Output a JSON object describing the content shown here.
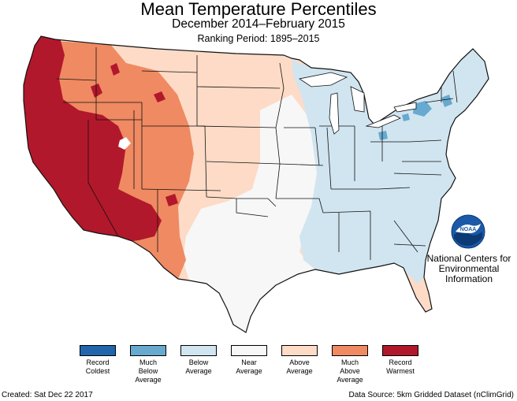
{
  "header": {
    "title": "Mean Temperature Percentiles",
    "subtitle": "December 2014–February 2015",
    "period": "Ranking Period: 1895–2015"
  },
  "colors": {
    "record_coldest": "#2166ac",
    "much_below": "#67a9cf",
    "below": "#d1e5f0",
    "near": "#f7f7f7",
    "above": "#fddbc7",
    "much_above": "#ef8a62",
    "record_warmest": "#b2182b"
  },
  "legend": [
    {
      "label": "Record\nColdest",
      "color": "#2166ac"
    },
    {
      "label": "Much\nBelow\nAverage",
      "color": "#67a9cf"
    },
    {
      "label": "Below\nAverage",
      "color": "#d1e5f0"
    },
    {
      "label": "Near\nAverage",
      "color": "#f7f7f7"
    },
    {
      "label": "Above\nAverage",
      "color": "#fddbc7"
    },
    {
      "label": "Much\nAbove\nAverage",
      "color": "#ef8a62"
    },
    {
      "label": "Record\nWarmest",
      "color": "#b2182b"
    }
  ],
  "logo": {
    "icon": "noaa-logo",
    "org_text": "NOAA",
    "org_name": "National Centers for\nEnvironmental\nInformation"
  },
  "footer": {
    "created": "Created: Sat Dec 22 2017",
    "source": "Data Source: 5km Gridded Dataset (nClimGrid)"
  }
}
